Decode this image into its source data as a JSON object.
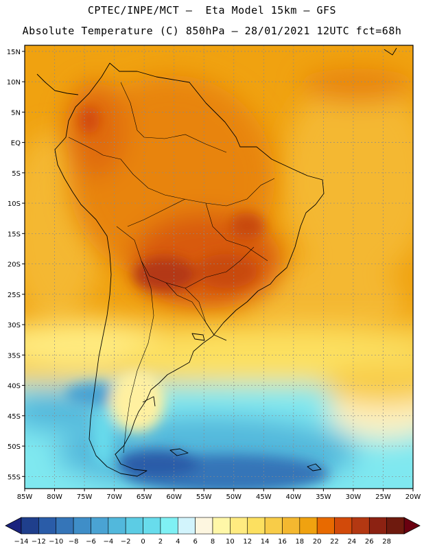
{
  "header": {
    "title_line1": "CPTEC/INPE/MCT –  Eta Model 15km – GFS",
    "title_line2": "Absolute Temperature (C) 850hPa – 28/01/2021 12UTC fct=68h"
  },
  "map": {
    "region": "South America",
    "lon_range": [
      -85,
      -20
    ],
    "lat_range": [
      -57,
      16
    ],
    "lon_ticks": [
      "85W",
      "80W",
      "75W",
      "70W",
      "65W",
      "60W",
      "55W",
      "50W",
      "45W",
      "40W",
      "35W",
      "30W",
      "25W",
      "20W"
    ],
    "lat_ticks": [
      "15N",
      "10N",
      "5N",
      "EQ",
      "5S",
      "10S",
      "15S",
      "20S",
      "25S",
      "30S",
      "35S",
      "40S",
      "45S",
      "50S",
      "55S"
    ],
    "gridlines": true,
    "background_field": "temperature_850hPa",
    "hot_core_region": "Paraguay / Mato Grosso do Sul"
  },
  "colorbar": {
    "labels": [
      "-14",
      "-12",
      "-10",
      "-8",
      "-6",
      "-4",
      "-2",
      "0",
      "2",
      "4",
      "6",
      "8",
      "10",
      "12",
      "14",
      "16",
      "18",
      "20",
      "22",
      "24",
      "26",
      "28"
    ],
    "colors": [
      "#1f3f8c",
      "#2a5ca8",
      "#3575b8",
      "#3f8ec8",
      "#4aa3d3",
      "#52b8dc",
      "#5ccce4",
      "#68dcec",
      "#7ff0f4",
      "#d2f4fc",
      "#fdf6e0",
      "#fff7a8",
      "#ffeb80",
      "#fce060",
      "#f8cc48",
      "#f4b830",
      "#f0a210",
      "#e86a00",
      "#d24a0a",
      "#b33812",
      "#8c2212",
      "#6e1a0e"
    ],
    "left_arrow_color": "#1a237e",
    "right_arrow_color": "#6a0010"
  }
}
